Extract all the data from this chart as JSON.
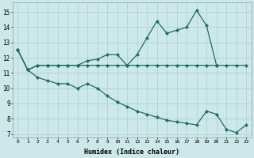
{
  "xlabel": "Humidex (Indice chaleur)",
  "bg_color": "#cce8e8",
  "line_color": "#1a6e6a",
  "grid_color": "#aed4d4",
  "xlim": [
    -0.5,
    23.5
  ],
  "ylim": [
    6.8,
    15.6
  ],
  "yticks": [
    7,
    8,
    9,
    10,
    11,
    12,
    13,
    14,
    15
  ],
  "xticks": [
    0,
    1,
    2,
    3,
    4,
    5,
    6,
    7,
    8,
    9,
    10,
    11,
    12,
    13,
    14,
    15,
    16,
    17,
    18,
    19,
    20,
    21,
    22,
    23
  ],
  "line1_x": [
    0,
    1,
    2,
    3,
    4,
    5,
    6,
    7,
    8,
    9,
    10,
    11,
    12,
    13,
    14,
    15,
    16,
    17,
    18,
    19,
    20
  ],
  "line1_y": [
    12.5,
    11.2,
    11.5,
    11.5,
    11.5,
    11.5,
    11.5,
    11.8,
    11.9,
    12.2,
    12.2,
    11.5,
    12.2,
    13.3,
    14.4,
    13.6,
    13.8,
    14.0,
    15.1,
    14.1,
    11.5
  ],
  "line2_x": [
    0,
    1,
    2,
    3,
    4,
    5,
    6,
    7,
    8,
    9,
    10,
    11,
    12,
    13,
    14,
    15,
    16,
    17,
    18,
    19,
    20,
    21,
    22,
    23
  ],
  "line2_y": [
    12.5,
    11.2,
    11.5,
    11.5,
    11.5,
    11.5,
    11.5,
    11.5,
    11.5,
    11.5,
    11.5,
    11.5,
    11.5,
    11.5,
    11.5,
    11.5,
    11.5,
    11.5,
    11.5,
    11.5,
    11.5,
    11.5,
    11.5,
    11.5
  ],
  "line3_x": [
    0,
    1,
    2,
    3,
    4,
    5,
    6,
    7,
    8,
    9,
    10,
    11,
    12,
    13,
    14,
    15,
    16,
    17,
    18,
    19,
    20,
    21,
    22,
    23
  ],
  "line3_y": [
    12.5,
    11.2,
    10.7,
    10.5,
    10.3,
    10.3,
    10.0,
    10.3,
    10.0,
    9.5,
    9.1,
    8.8,
    8.5,
    8.3,
    8.1,
    7.9,
    7.8,
    7.7,
    7.6,
    8.5,
    8.3,
    7.3,
    7.1,
    7.6
  ]
}
